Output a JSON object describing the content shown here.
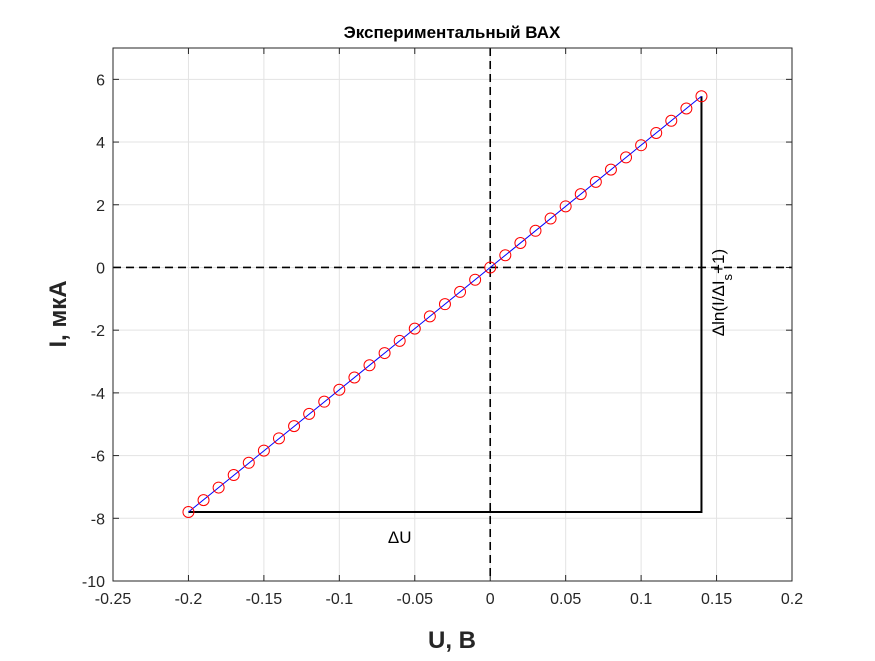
{
  "chart_data": {
    "type": "scatter",
    "title": "Экспериментальный ВАХ",
    "xlabel": "U, В",
    "ylabel": "I, мкА",
    "xlim": [
      -0.25,
      0.2
    ],
    "ylim": [
      -10,
      7
    ],
    "xticks": [
      -0.25,
      -0.2,
      -0.15,
      -0.1,
      -0.05,
      0,
      0.05,
      0.1,
      0.15,
      0.2
    ],
    "xtick_labels": [
      "-0.25",
      "-0.2",
      "-0.15",
      "-0.1",
      "-0.05",
      "0",
      "0.05",
      "0.1",
      "0.15",
      "0.2"
    ],
    "yticks": [
      -10,
      -8,
      -6,
      -4,
      -2,
      0,
      2,
      4,
      6
    ],
    "ytick_labels": [
      "-10",
      "-8",
      "-6",
      "-4",
      "-2",
      "0",
      "2",
      "4",
      "6"
    ],
    "grid": true,
    "series": [
      {
        "kind": "markers",
        "marker": "circle",
        "color": "#ff0000",
        "x": [
          -0.2,
          -0.19,
          -0.18,
          -0.17,
          -0.16,
          -0.15,
          -0.14,
          -0.13,
          -0.12,
          -0.11,
          -0.1,
          -0.09,
          -0.08,
          -0.07,
          -0.06,
          -0.05,
          -0.04,
          -0.03,
          -0.02,
          -0.01,
          0,
          0.01,
          0.02,
          0.03,
          0.04,
          0.05,
          0.06,
          0.07,
          0.08,
          0.09,
          0.1,
          0.11,
          0.12,
          0.13,
          0.14
        ],
        "y": [
          -7.8,
          -7.42,
          -7.02,
          -6.62,
          -6.23,
          -5.84,
          -5.45,
          -5.06,
          -4.67,
          -4.28,
          -3.9,
          -3.51,
          -3.12,
          -2.73,
          -2.34,
          -1.95,
          -1.56,
          -1.17,
          -0.78,
          -0.39,
          0,
          0.39,
          0.78,
          1.17,
          1.56,
          1.95,
          2.34,
          2.73,
          3.12,
          3.51,
          3.9,
          4.29,
          4.68,
          5.07,
          5.46
        ]
      },
      {
        "kind": "line",
        "color": "#0000ff",
        "x": [
          -0.2,
          0.14
        ],
        "y": [
          -7.8,
          5.46
        ]
      }
    ],
    "reference_lines": [
      {
        "orientation": "vertical",
        "value": 0,
        "style": "dashed",
        "color": "#000000"
      },
      {
        "orientation": "horizontal",
        "value": 0,
        "style": "dashed",
        "color": "#000000"
      }
    ],
    "annotations": {
      "triangle_color": "#000000",
      "triangle": {
        "x": [
          -0.2,
          0.14,
          0.14
        ],
        "y": [
          -7.8,
          -7.8,
          5.46
        ]
      },
      "delta_u": {
        "text": "ΔU",
        "x": -0.06,
        "y": -8.6
      },
      "delta_ln": {
        "prefix": "Δln(I/ΔI",
        "sub": "s",
        "suffix": "+1)",
        "x": 0.155,
        "y": -0.8
      }
    }
  }
}
